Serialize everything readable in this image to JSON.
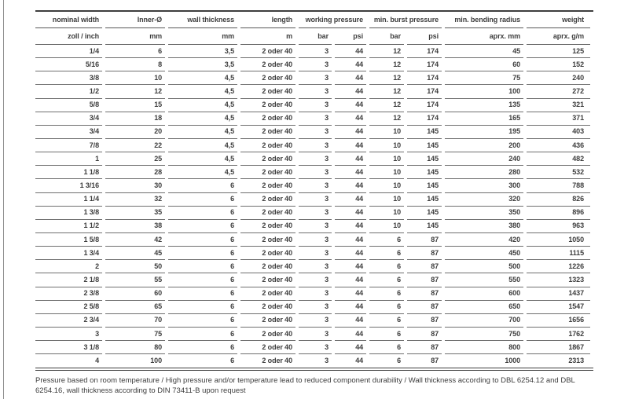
{
  "table": {
    "groups": [
      {
        "label": "nominal width",
        "span": 1
      },
      {
        "label": "Inner-Ø",
        "span": 1
      },
      {
        "label": "wall thickness",
        "span": 1
      },
      {
        "label": "length",
        "span": 1
      },
      {
        "label": "working pressure",
        "span": 2
      },
      {
        "label": "min. burst pressure",
        "span": 2
      },
      {
        "label": "min. bending radius",
        "span": 1
      },
      {
        "label": "weight",
        "span": 1
      }
    ],
    "units": [
      "zoll / inch",
      "mm",
      "mm",
      "m",
      "bar",
      "psi",
      "bar",
      "psi",
      "aprx. mm",
      "aprx. g/m"
    ],
    "column_keys": [
      "nominal_width_zoll_inch",
      "inner_diameter_mm",
      "wall_thickness_mm",
      "length_m",
      "working_pressure_bar",
      "working_pressure_psi",
      "min_burst_pressure_bar",
      "min_burst_pressure_psi",
      "min_bending_radius_aprx_mm",
      "weight_aprx_g_per_m"
    ],
    "rows": [
      {
        "nominal_width_zoll_inch": "1/4",
        "inner_diameter_mm": "6",
        "wall_thickness_mm": "3,5",
        "length_m": "2 oder 40",
        "working_pressure_bar": "3",
        "working_pressure_psi": "44",
        "min_burst_pressure_bar": "12",
        "min_burst_pressure_psi": "174",
        "min_bending_radius_aprx_mm": "45",
        "weight_aprx_g_per_m": "125"
      },
      {
        "nominal_width_zoll_inch": "5/16",
        "inner_diameter_mm": "8",
        "wall_thickness_mm": "3,5",
        "length_m": "2 oder 40",
        "working_pressure_bar": "3",
        "working_pressure_psi": "44",
        "min_burst_pressure_bar": "12",
        "min_burst_pressure_psi": "174",
        "min_bending_radius_aprx_mm": "60",
        "weight_aprx_g_per_m": "152"
      },
      {
        "nominal_width_zoll_inch": "3/8",
        "inner_diameter_mm": "10",
        "wall_thickness_mm": "4,5",
        "length_m": "2 oder 40",
        "working_pressure_bar": "3",
        "working_pressure_psi": "44",
        "min_burst_pressure_bar": "12",
        "min_burst_pressure_psi": "174",
        "min_bending_radius_aprx_mm": "75",
        "weight_aprx_g_per_m": "240"
      },
      {
        "nominal_width_zoll_inch": "1/2",
        "inner_diameter_mm": "12",
        "wall_thickness_mm": "4,5",
        "length_m": "2 oder 40",
        "working_pressure_bar": "3",
        "working_pressure_psi": "44",
        "min_burst_pressure_bar": "12",
        "min_burst_pressure_psi": "174",
        "min_bending_radius_aprx_mm": "100",
        "weight_aprx_g_per_m": "272"
      },
      {
        "nominal_width_zoll_inch": "5/8",
        "inner_diameter_mm": "15",
        "wall_thickness_mm": "4,5",
        "length_m": "2 oder 40",
        "working_pressure_bar": "3",
        "working_pressure_psi": "44",
        "min_burst_pressure_bar": "12",
        "min_burst_pressure_psi": "174",
        "min_bending_radius_aprx_mm": "135",
        "weight_aprx_g_per_m": "321"
      },
      {
        "nominal_width_zoll_inch": "3/4",
        "inner_diameter_mm": "18",
        "wall_thickness_mm": "4,5",
        "length_m": "2 oder 40",
        "working_pressure_bar": "3",
        "working_pressure_psi": "44",
        "min_burst_pressure_bar": "12",
        "min_burst_pressure_psi": "174",
        "min_bending_radius_aprx_mm": "165",
        "weight_aprx_g_per_m": "371"
      },
      {
        "nominal_width_zoll_inch": "3/4",
        "inner_diameter_mm": "20",
        "wall_thickness_mm": "4,5",
        "length_m": "2 oder 40",
        "working_pressure_bar": "3",
        "working_pressure_psi": "44",
        "min_burst_pressure_bar": "10",
        "min_burst_pressure_psi": "145",
        "min_bending_radius_aprx_mm": "195",
        "weight_aprx_g_per_m": "403"
      },
      {
        "nominal_width_zoll_inch": "7/8",
        "inner_diameter_mm": "22",
        "wall_thickness_mm": "4,5",
        "length_m": "2 oder 40",
        "working_pressure_bar": "3",
        "working_pressure_psi": "44",
        "min_burst_pressure_bar": "10",
        "min_burst_pressure_psi": "145",
        "min_bending_radius_aprx_mm": "200",
        "weight_aprx_g_per_m": "436"
      },
      {
        "nominal_width_zoll_inch": "1",
        "inner_diameter_mm": "25",
        "wall_thickness_mm": "4,5",
        "length_m": "2 oder 40",
        "working_pressure_bar": "3",
        "working_pressure_psi": "44",
        "min_burst_pressure_bar": "10",
        "min_burst_pressure_psi": "145",
        "min_bending_radius_aprx_mm": "240",
        "weight_aprx_g_per_m": "482"
      },
      {
        "nominal_width_zoll_inch": "1 1/8",
        "inner_diameter_mm": "28",
        "wall_thickness_mm": "4,5",
        "length_m": "2 oder 40",
        "working_pressure_bar": "3",
        "working_pressure_psi": "44",
        "min_burst_pressure_bar": "10",
        "min_burst_pressure_psi": "145",
        "min_bending_radius_aprx_mm": "280",
        "weight_aprx_g_per_m": "532"
      },
      {
        "nominal_width_zoll_inch": "1 3/16",
        "inner_diameter_mm": "30",
        "wall_thickness_mm": "6",
        "length_m": "2 oder 40",
        "working_pressure_bar": "3",
        "working_pressure_psi": "44",
        "min_burst_pressure_bar": "10",
        "min_burst_pressure_psi": "145",
        "min_bending_radius_aprx_mm": "300",
        "weight_aprx_g_per_m": "788"
      },
      {
        "nominal_width_zoll_inch": "1 1/4",
        "inner_diameter_mm": "32",
        "wall_thickness_mm": "6",
        "length_m": "2 oder 40",
        "working_pressure_bar": "3",
        "working_pressure_psi": "44",
        "min_burst_pressure_bar": "10",
        "min_burst_pressure_psi": "145",
        "min_bending_radius_aprx_mm": "320",
        "weight_aprx_g_per_m": "826"
      },
      {
        "nominal_width_zoll_inch": "1 3/8",
        "inner_diameter_mm": "35",
        "wall_thickness_mm": "6",
        "length_m": "2 oder 40",
        "working_pressure_bar": "3",
        "working_pressure_psi": "44",
        "min_burst_pressure_bar": "10",
        "min_burst_pressure_psi": "145",
        "min_bending_radius_aprx_mm": "350",
        "weight_aprx_g_per_m": "896"
      },
      {
        "nominal_width_zoll_inch": "1 1/2",
        "inner_diameter_mm": "38",
        "wall_thickness_mm": "6",
        "length_m": "2 oder 40",
        "working_pressure_bar": "3",
        "working_pressure_psi": "44",
        "min_burst_pressure_bar": "10",
        "min_burst_pressure_psi": "145",
        "min_bending_radius_aprx_mm": "380",
        "weight_aprx_g_per_m": "963"
      },
      {
        "nominal_width_zoll_inch": "1 5/8",
        "inner_diameter_mm": "42",
        "wall_thickness_mm": "6",
        "length_m": "2 oder 40",
        "working_pressure_bar": "3",
        "working_pressure_psi": "44",
        "min_burst_pressure_bar": "6",
        "min_burst_pressure_psi": "87",
        "min_bending_radius_aprx_mm": "420",
        "weight_aprx_g_per_m": "1050"
      },
      {
        "nominal_width_zoll_inch": "1 3/4",
        "inner_diameter_mm": "45",
        "wall_thickness_mm": "6",
        "length_m": "2 oder 40",
        "working_pressure_bar": "3",
        "working_pressure_psi": "44",
        "min_burst_pressure_bar": "6",
        "min_burst_pressure_psi": "87",
        "min_bending_radius_aprx_mm": "450",
        "weight_aprx_g_per_m": "1115"
      },
      {
        "nominal_width_zoll_inch": "2",
        "inner_diameter_mm": "50",
        "wall_thickness_mm": "6",
        "length_m": "2 oder 40",
        "working_pressure_bar": "3",
        "working_pressure_psi": "44",
        "min_burst_pressure_bar": "6",
        "min_burst_pressure_psi": "87",
        "min_bending_radius_aprx_mm": "500",
        "weight_aprx_g_per_m": "1226"
      },
      {
        "nominal_width_zoll_inch": "2 1/8",
        "inner_diameter_mm": "55",
        "wall_thickness_mm": "6",
        "length_m": "2 oder 40",
        "working_pressure_bar": "3",
        "working_pressure_psi": "44",
        "min_burst_pressure_bar": "6",
        "min_burst_pressure_psi": "87",
        "min_bending_radius_aprx_mm": "550",
        "weight_aprx_g_per_m": "1323"
      },
      {
        "nominal_width_zoll_inch": "2 3/8",
        "inner_diameter_mm": "60",
        "wall_thickness_mm": "6",
        "length_m": "2 oder 40",
        "working_pressure_bar": "3",
        "working_pressure_psi": "44",
        "min_burst_pressure_bar": "6",
        "min_burst_pressure_psi": "87",
        "min_bending_radius_aprx_mm": "600",
        "weight_aprx_g_per_m": "1437"
      },
      {
        "nominal_width_zoll_inch": "2 5/8",
        "inner_diameter_mm": "65",
        "wall_thickness_mm": "6",
        "length_m": "2 oder 40",
        "working_pressure_bar": "3",
        "working_pressure_psi": "44",
        "min_burst_pressure_bar": "6",
        "min_burst_pressure_psi": "87",
        "min_bending_radius_aprx_mm": "650",
        "weight_aprx_g_per_m": "1547"
      },
      {
        "nominal_width_zoll_inch": "2 3/4",
        "inner_diameter_mm": "70",
        "wall_thickness_mm": "6",
        "length_m": "2 oder 40",
        "working_pressure_bar": "3",
        "working_pressure_psi": "44",
        "min_burst_pressure_bar": "6",
        "min_burst_pressure_psi": "87",
        "min_bending_radius_aprx_mm": "700",
        "weight_aprx_g_per_m": "1656"
      },
      {
        "nominal_width_zoll_inch": "3",
        "inner_diameter_mm": "75",
        "wall_thickness_mm": "6",
        "length_m": "2 oder 40",
        "working_pressure_bar": "3",
        "working_pressure_psi": "44",
        "min_burst_pressure_bar": "6",
        "min_burst_pressure_psi": "87",
        "min_bending_radius_aprx_mm": "750",
        "weight_aprx_g_per_m": "1762"
      },
      {
        "nominal_width_zoll_inch": "3 1/8",
        "inner_diameter_mm": "80",
        "wall_thickness_mm": "6",
        "length_m": "2 oder 40",
        "working_pressure_bar": "3",
        "working_pressure_psi": "44",
        "min_burst_pressure_bar": "6",
        "min_burst_pressure_psi": "87",
        "min_bending_radius_aprx_mm": "800",
        "weight_aprx_g_per_m": "1867"
      },
      {
        "nominal_width_zoll_inch": "4",
        "inner_diameter_mm": "100",
        "wall_thickness_mm": "6",
        "length_m": "2 oder 40",
        "working_pressure_bar": "3",
        "working_pressure_psi": "44",
        "min_burst_pressure_bar": "6",
        "min_burst_pressure_psi": "87",
        "min_bending_radius_aprx_mm": "1000",
        "weight_aprx_g_per_m": "2313"
      }
    ]
  },
  "footnote": "Pressure based on room temperature / High pressure and/or temperature lead to reduced component durability / Wall thickness according to DBL 6254.12 and DBL 6254.16, wall thickness according to DIN 73411-B upon request"
}
